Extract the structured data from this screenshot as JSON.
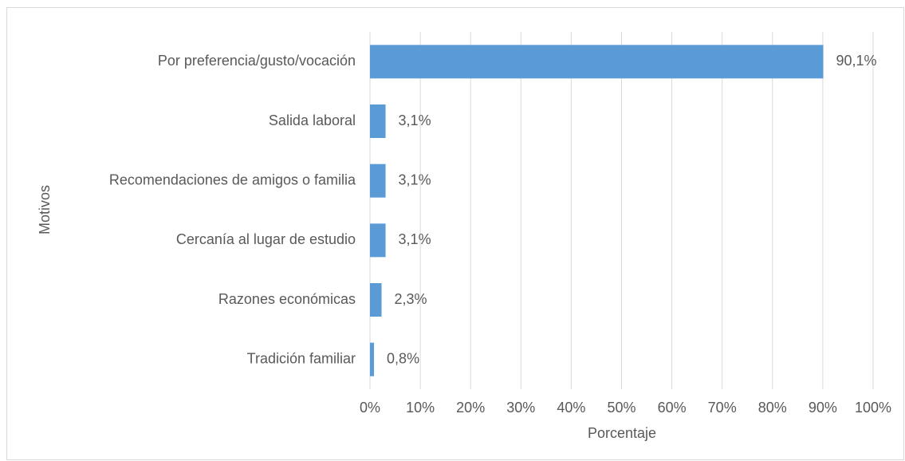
{
  "chart_data": {
    "type": "bar",
    "orientation": "horizontal",
    "categories": [
      "Por preferencia/gusto/vocación",
      "Salida laboral",
      "Recomendaciones de amigos o familia",
      "Cercanía al lugar de estudio",
      "Razones económicas",
      "Tradición familiar"
    ],
    "values": [
      90.1,
      3.1,
      3.1,
      3.1,
      2.3,
      0.8
    ],
    "value_labels": [
      "90,1%",
      "3,1%",
      "3,1%",
      "3,1%",
      "2,3%",
      "0,8%"
    ],
    "color": "#5b9bd5",
    "xlabel": "Porcentaje",
    "ylabel": "Motivos",
    "xlim": [
      0,
      100
    ],
    "xticks": [
      {
        "value": 0,
        "label": "0%"
      },
      {
        "value": 10,
        "label": "10%"
      },
      {
        "value": 20,
        "label": "20%"
      },
      {
        "value": 30,
        "label": "30%"
      },
      {
        "value": 40,
        "label": "40%"
      },
      {
        "value": 50,
        "label": "50%"
      },
      {
        "value": 60,
        "label": "60%"
      },
      {
        "value": 70,
        "label": "70%"
      },
      {
        "value": 80,
        "label": "80%"
      },
      {
        "value": 90,
        "label": "90%"
      },
      {
        "value": 100,
        "label": "100%"
      }
    ],
    "grid": true
  }
}
